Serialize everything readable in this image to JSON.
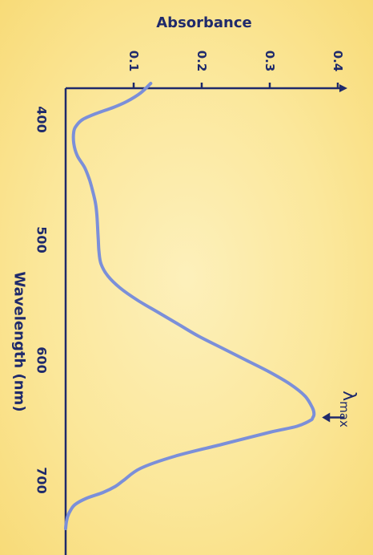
{
  "chart_data": {
    "type": "line",
    "orientation": "rotated-90-clockwise",
    "title": "",
    "xlabel": "Wavelength (nm)",
    "ylabel": "Absorbance",
    "xlim": [
      370,
      740
    ],
    "ylim": [
      0,
      0.42
    ],
    "x_ticks": [
      400,
      500,
      600,
      700
    ],
    "y_ticks": [
      0.1,
      0.2,
      0.3,
      0.4
    ],
    "x_tick_labels": [
      "400",
      "500",
      "600",
      "700"
    ],
    "y_tick_labels": [
      "0.1",
      "0.2",
      "0.3",
      "0.4"
    ],
    "grid": false,
    "legend": "none",
    "series": [
      {
        "color": "#7b8fd9",
        "x": [
          370,
          378,
          385,
          390,
          395,
          400,
          405,
          410,
          420,
          430,
          440,
          450,
          460,
          470,
          480,
          490,
          500,
          510,
          520,
          530,
          540,
          550,
          560,
          570,
          580,
          590,
          600,
          610,
          620,
          630,
          640,
          645,
          648,
          650,
          655,
          660,
          670,
          680,
          690,
          700,
          705,
          710,
          715,
          720,
          725,
          730,
          735,
          740
        ],
        "y": [
          0.125,
          0.11,
          0.09,
          0.07,
          0.045,
          0.025,
          0.016,
          0.012,
          0.012,
          0.017,
          0.028,
          0.035,
          0.04,
          0.044,
          0.046,
          0.047,
          0.048,
          0.049,
          0.052,
          0.062,
          0.08,
          0.105,
          0.135,
          0.165,
          0.195,
          0.23,
          0.265,
          0.3,
          0.33,
          0.352,
          0.363,
          0.365,
          0.363,
          0.36,
          0.34,
          0.3,
          0.23,
          0.16,
          0.11,
          0.085,
          0.073,
          0.055,
          0.03,
          0.014,
          0.007,
          0.003,
          0.001,
          0.0
        ]
      }
    ],
    "annotations": [
      {
        "text": "λ",
        "subscript": "max",
        "x": 645,
        "y": 0.365,
        "arrow": true
      }
    ]
  },
  "colors": {
    "axis": "#1f2a6b",
    "text": "#1f2a6b",
    "line": "#7b8fd9"
  }
}
